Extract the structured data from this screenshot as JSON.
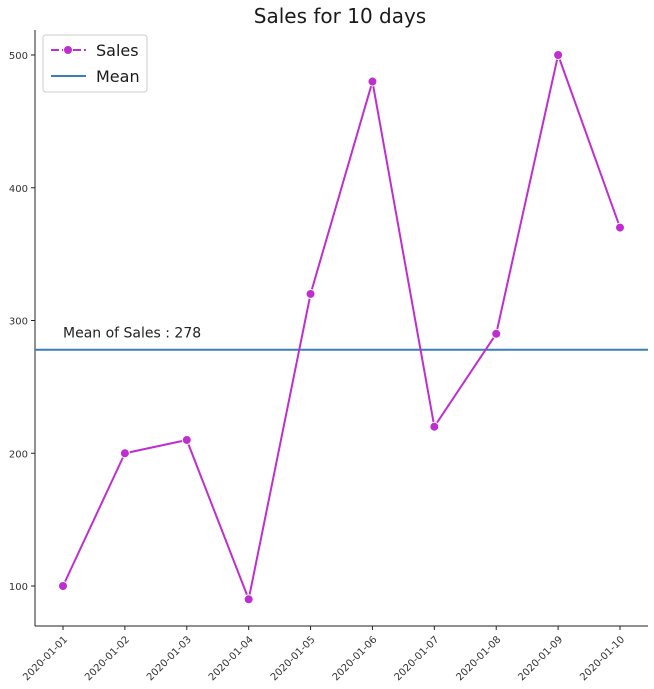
{
  "chart_data": {
    "type": "line",
    "title": "Sales for 10 days",
    "xlabel": "",
    "ylabel": "",
    "categories": [
      "2020-01-01",
      "2020-01-02",
      "2020-01-03",
      "2020-01-04",
      "2020-01-05",
      "2020-01-06",
      "2020-01-07",
      "2020-01-08",
      "2020-01-09",
      "2020-01-10"
    ],
    "series": [
      {
        "name": "Sales",
        "values": [
          100,
          200,
          210,
          90,
          320,
          480,
          220,
          290,
          500,
          370
        ],
        "color": "#bf2fcf",
        "marker": "circle"
      }
    ],
    "mean_line": {
      "name": "Mean",
      "value": 278,
      "color": "#3a7fb5"
    },
    "annotation": {
      "text": "Mean of Sales : 278"
    },
    "ylim": [
      70,
      520
    ],
    "yticks": [
      100,
      200,
      300,
      400,
      500
    ],
    "grid": false,
    "legend_position": "top-left"
  }
}
